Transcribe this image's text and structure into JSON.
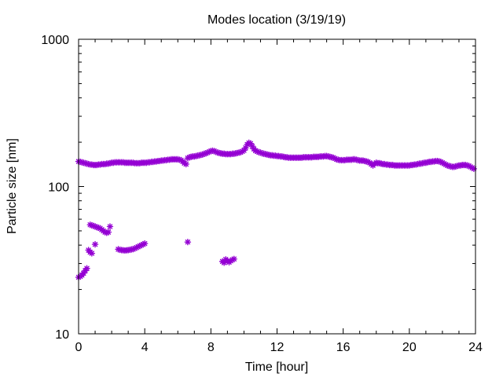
{
  "chart_data": {
    "type": "scatter",
    "title": "Modes location (3/19/19)",
    "xlabel": "Time [hour]",
    "ylabel": "Particle size [nm]",
    "xlim": [
      0,
      24
    ],
    "ylim": [
      10,
      1000
    ],
    "yscale": "log",
    "grid": false,
    "legend": "none",
    "x_ticks": [
      0,
      4,
      8,
      12,
      16,
      20,
      24
    ],
    "x_tick_labels": [
      "0",
      "4",
      "8",
      "12",
      "16",
      "20",
      "24"
    ],
    "y_ticks": [
      10,
      100,
      1000
    ],
    "y_tick_labels": [
      "10",
      "100",
      "1000"
    ],
    "marker": "star",
    "color": "#9400d3",
    "series": [
      {
        "points": [
          [
            0.0,
            148
          ],
          [
            0.1,
            147
          ],
          [
            0.2,
            146
          ],
          [
            0.3,
            145
          ],
          [
            0.4,
            144
          ],
          [
            0.5,
            143
          ],
          [
            0.6,
            142
          ],
          [
            0.7,
            141
          ],
          [
            0.8,
            141
          ],
          [
            0.9,
            140
          ],
          [
            1.0,
            140
          ],
          [
            1.1,
            140
          ],
          [
            1.2,
            141
          ],
          [
            1.3,
            141
          ],
          [
            1.4,
            142
          ],
          [
            1.5,
            142
          ],
          [
            1.6,
            142
          ],
          [
            1.7,
            143
          ],
          [
            1.8,
            143
          ],
          [
            1.9,
            144
          ],
          [
            2.0,
            145
          ],
          [
            2.1,
            145
          ],
          [
            2.2,
            146
          ],
          [
            2.3,
            146
          ],
          [
            2.4,
            146
          ],
          [
            2.5,
            146
          ],
          [
            2.6,
            146
          ],
          [
            2.7,
            146
          ],
          [
            2.8,
            145
          ],
          [
            2.9,
            145
          ],
          [
            3.0,
            145
          ],
          [
            3.1,
            145
          ],
          [
            3.2,
            145
          ],
          [
            3.3,
            145
          ],
          [
            3.4,
            144
          ],
          [
            3.5,
            144
          ],
          [
            3.6,
            144
          ],
          [
            3.7,
            144
          ],
          [
            3.8,
            145
          ],
          [
            3.9,
            145
          ],
          [
            4.0,
            145
          ],
          [
            4.1,
            145
          ],
          [
            4.2,
            146
          ],
          [
            4.3,
            146
          ],
          [
            4.4,
            147
          ],
          [
            4.5,
            147
          ],
          [
            4.6,
            148
          ],
          [
            4.7,
            148
          ],
          [
            4.8,
            149
          ],
          [
            4.9,
            149
          ],
          [
            5.0,
            150
          ],
          [
            5.1,
            150
          ],
          [
            5.2,
            151
          ],
          [
            5.3,
            151
          ],
          [
            5.4,
            152
          ],
          [
            5.5,
            152
          ],
          [
            5.6,
            153
          ],
          [
            5.7,
            153
          ],
          [
            5.8,
            153
          ],
          [
            5.9,
            153
          ],
          [
            6.0,
            153
          ],
          [
            6.1,
            152
          ],
          [
            6.2,
            151
          ],
          [
            6.3,
            148
          ],
          [
            6.4,
            144
          ],
          [
            6.5,
            142
          ],
          [
            6.6,
            156
          ],
          [
            6.7,
            158
          ],
          [
            6.8,
            159
          ],
          [
            6.9,
            160
          ],
          [
            7.0,
            160
          ],
          [
            7.1,
            161
          ],
          [
            7.2,
            162
          ],
          [
            7.3,
            163
          ],
          [
            7.4,
            164
          ],
          [
            7.5,
            165
          ],
          [
            7.6,
            167
          ],
          [
            7.7,
            168
          ],
          [
            7.8,
            170
          ],
          [
            7.9,
            172
          ],
          [
            8.0,
            174
          ],
          [
            8.1,
            175
          ],
          [
            8.2,
            174
          ],
          [
            8.3,
            172
          ],
          [
            8.4,
            170
          ],
          [
            8.5,
            169
          ],
          [
            8.6,
            168
          ],
          [
            8.7,
            167
          ],
          [
            8.8,
            167
          ],
          [
            8.9,
            166
          ],
          [
            9.0,
            166
          ],
          [
            9.1,
            166
          ],
          [
            9.2,
            166
          ],
          [
            9.3,
            167
          ],
          [
            9.4,
            167
          ],
          [
            9.5,
            168
          ],
          [
            9.6,
            169
          ],
          [
            9.7,
            170
          ],
          [
            9.8,
            171
          ],
          [
            9.9,
            173
          ],
          [
            10.0,
            176
          ],
          [
            10.1,
            183
          ],
          [
            10.2,
            193
          ],
          [
            10.3,
            198
          ],
          [
            10.4,
            196
          ],
          [
            10.5,
            188
          ],
          [
            10.6,
            180
          ],
          [
            10.7,
            175
          ],
          [
            10.8,
            173
          ],
          [
            10.9,
            171
          ],
          [
            11.0,
            170
          ],
          [
            11.1,
            168
          ],
          [
            11.2,
            167
          ],
          [
            11.3,
            166
          ],
          [
            11.4,
            165
          ],
          [
            11.5,
            164
          ],
          [
            11.6,
            163
          ],
          [
            11.7,
            163
          ],
          [
            11.8,
            162
          ],
          [
            11.9,
            162
          ],
          [
            12.0,
            161
          ],
          [
            12.1,
            161
          ],
          [
            12.2,
            160
          ],
          [
            12.3,
            160
          ],
          [
            12.4,
            159
          ],
          [
            12.5,
            158
          ],
          [
            12.6,
            158
          ],
          [
            12.7,
            157
          ],
          [
            12.8,
            157
          ],
          [
            12.9,
            157
          ],
          [
            13.0,
            157
          ],
          [
            13.1,
            157
          ],
          [
            13.2,
            157
          ],
          [
            13.3,
            157
          ],
          [
            13.4,
            157
          ],
          [
            13.5,
            157
          ],
          [
            13.6,
            158
          ],
          [
            13.7,
            158
          ],
          [
            13.8,
            158
          ],
          [
            13.9,
            158
          ],
          [
            14.0,
            158
          ],
          [
            14.1,
            158
          ],
          [
            14.2,
            159
          ],
          [
            14.3,
            159
          ],
          [
            14.4,
            159
          ],
          [
            14.5,
            159
          ],
          [
            14.6,
            160
          ],
          [
            14.7,
            160
          ],
          [
            14.8,
            160
          ],
          [
            14.9,
            161
          ],
          [
            15.0,
            161
          ],
          [
            15.1,
            160
          ],
          [
            15.2,
            159
          ],
          [
            15.3,
            158
          ],
          [
            15.4,
            157
          ],
          [
            15.5,
            155
          ],
          [
            15.6,
            153
          ],
          [
            15.7,
            152
          ],
          [
            15.8,
            151
          ],
          [
            15.9,
            151
          ],
          [
            16.0,
            151
          ],
          [
            16.1,
            151
          ],
          [
            16.2,
            152
          ],
          [
            16.3,
            152
          ],
          [
            16.4,
            152
          ],
          [
            16.5,
            152
          ],
          [
            16.6,
            153
          ],
          [
            16.7,
            153
          ],
          [
            16.8,
            152
          ],
          [
            16.9,
            151
          ],
          [
            17.0,
            150
          ],
          [
            17.1,
            150
          ],
          [
            17.2,
            150
          ],
          [
            17.3,
            149
          ],
          [
            17.4,
            148
          ],
          [
            17.5,
            147
          ],
          [
            17.6,
            145
          ],
          [
            17.7,
            142
          ],
          [
            17.8,
            139
          ],
          [
            17.9,
            143
          ],
          [
            18.0,
            145
          ],
          [
            18.1,
            144
          ],
          [
            18.2,
            144
          ],
          [
            18.3,
            143
          ],
          [
            18.4,
            142
          ],
          [
            18.5,
            142
          ],
          [
            18.6,
            141
          ],
          [
            18.7,
            141
          ],
          [
            18.8,
            140
          ],
          [
            18.9,
            140
          ],
          [
            19.0,
            140
          ],
          [
            19.1,
            139
          ],
          [
            19.2,
            139
          ],
          [
            19.3,
            139
          ],
          [
            19.4,
            139
          ],
          [
            19.5,
            139
          ],
          [
            19.6,
            139
          ],
          [
            19.7,
            139
          ],
          [
            19.8,
            139
          ],
          [
            19.9,
            139
          ],
          [
            20.0,
            139
          ],
          [
            20.1,
            140
          ],
          [
            20.2,
            140
          ],
          [
            20.3,
            141
          ],
          [
            20.4,
            141
          ],
          [
            20.5,
            142
          ],
          [
            20.6,
            143
          ],
          [
            20.7,
            143
          ],
          [
            20.8,
            144
          ],
          [
            20.9,
            145
          ],
          [
            21.0,
            145
          ],
          [
            21.1,
            146
          ],
          [
            21.2,
            147
          ],
          [
            21.3,
            147
          ],
          [
            21.4,
            148
          ],
          [
            21.5,
            148
          ],
          [
            21.6,
            149
          ],
          [
            21.7,
            149
          ],
          [
            21.8,
            148
          ],
          [
            21.9,
            147
          ],
          [
            22.0,
            145
          ],
          [
            22.1,
            143
          ],
          [
            22.2,
            141
          ],
          [
            22.3,
            139
          ],
          [
            22.4,
            138
          ],
          [
            22.5,
            137
          ],
          [
            22.6,
            136
          ],
          [
            22.7,
            136
          ],
          [
            22.8,
            137
          ],
          [
            22.9,
            138
          ],
          [
            23.0,
            139
          ],
          [
            23.1,
            139
          ],
          [
            23.2,
            140
          ],
          [
            23.3,
            140
          ],
          [
            23.4,
            140
          ],
          [
            23.5,
            139
          ],
          [
            23.6,
            138
          ],
          [
            23.7,
            136
          ],
          [
            23.8,
            134
          ],
          [
            23.9,
            132
          ],
          [
            0.0,
            24.2
          ],
          [
            0.1,
            24.5
          ],
          [
            0.2,
            25.0
          ],
          [
            0.3,
            25.8
          ],
          [
            0.4,
            26.8
          ],
          [
            0.5,
            27.8
          ],
          [
            0.6,
            37.0
          ],
          [
            0.7,
            35.8
          ],
          [
            0.8,
            35.2
          ],
          [
            0.7,
            55.0
          ],
          [
            0.8,
            54.5
          ],
          [
            0.9,
            54.0
          ],
          [
            1.0,
            53.5
          ],
          [
            1.1,
            53.0
          ],
          [
            1.2,
            52.5
          ],
          [
            1.3,
            52.0
          ],
          [
            1.4,
            51.0
          ],
          [
            1.5,
            50.0
          ],
          [
            1.6,
            49.0
          ],
          [
            1.7,
            48.5
          ],
          [
            1.8,
            49.0
          ],
          [
            1.9,
            53.5
          ],
          [
            1.0,
            40.5
          ],
          [
            2.4,
            37.5
          ],
          [
            2.5,
            37.2
          ],
          [
            2.6,
            37.0
          ],
          [
            2.7,
            36.9
          ],
          [
            2.8,
            36.8
          ],
          [
            2.9,
            36.9
          ],
          [
            3.0,
            37.0
          ],
          [
            3.1,
            37.2
          ],
          [
            3.2,
            37.4
          ],
          [
            3.3,
            37.6
          ],
          [
            3.4,
            38.0
          ],
          [
            3.5,
            38.5
          ],
          [
            3.6,
            39.0
          ],
          [
            3.7,
            39.5
          ],
          [
            3.8,
            40.0
          ],
          [
            3.9,
            40.5
          ],
          [
            4.0,
            41.0
          ],
          [
            6.6,
            42.0
          ],
          [
            8.7,
            31.0
          ],
          [
            8.8,
            30.4
          ],
          [
            8.9,
            32.0
          ],
          [
            9.0,
            31.2
          ],
          [
            9.1,
            30.6
          ],
          [
            9.2,
            31.3
          ],
          [
            9.3,
            31.8
          ],
          [
            9.4,
            32.2
          ]
        ]
      }
    ]
  }
}
